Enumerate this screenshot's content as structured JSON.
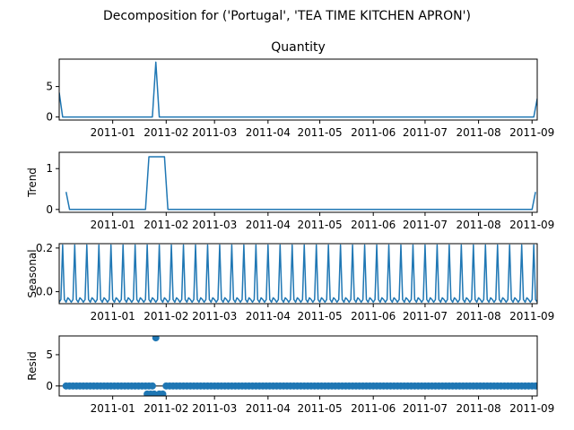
{
  "figure": {
    "suptitle": "Decomposition for ('Portugal', 'TEA TIME KITCHEN APRON')"
  },
  "colors": {
    "series": "#1f77b4",
    "zero_line": "#000000"
  },
  "chart_data": [
    {
      "type": "line",
      "title": "Quantity",
      "ylabel": "",
      "xlim": [
        "2010-12-01",
        "2011-09-04"
      ],
      "ylim": [
        -0.5,
        9.5
      ],
      "yticks": [
        0,
        5
      ],
      "xticks": [
        "2011-01",
        "2011-02",
        "2011-03",
        "2011-04",
        "2011-05",
        "2011-06",
        "2011-07",
        "2011-08",
        "2011-09"
      ],
      "points": [
        [
          "2010-12-01",
          4
        ],
        [
          "2010-12-03",
          0
        ],
        [
          "2011-01-24",
          0
        ],
        [
          "2011-01-26",
          9
        ],
        [
          "2011-01-28",
          0
        ],
        [
          "2011-09-02",
          0
        ],
        [
          "2011-09-04",
          3
        ]
      ]
    },
    {
      "type": "line",
      "title": "",
      "ylabel": "Trend",
      "xlim": [
        "2010-12-01",
        "2011-09-04"
      ],
      "ylim": [
        -0.07,
        1.4
      ],
      "yticks": [
        0,
        1
      ],
      "xticks": [
        "2011-01",
        "2011-02",
        "2011-03",
        "2011-04",
        "2011-05",
        "2011-06",
        "2011-07",
        "2011-08",
        "2011-09"
      ],
      "points": [
        [
          "2010-12-05",
          0.43
        ],
        [
          "2010-12-07",
          0
        ],
        [
          "2011-01-20",
          0
        ],
        [
          "2011-01-22",
          1.29
        ],
        [
          "2011-01-31",
          1.29
        ],
        [
          "2011-02-02",
          0
        ],
        [
          "2011-09-01",
          0
        ],
        [
          "2011-09-03",
          0.43
        ]
      ]
    },
    {
      "type": "line",
      "title": "",
      "ylabel": "Seasonal",
      "xlim": [
        "2010-12-01",
        "2011-09-04"
      ],
      "ylim": [
        -0.055,
        0.22
      ],
      "yticks": [
        0.0,
        0.2
      ],
      "xticks": [
        "2011-01",
        "2011-02",
        "2011-03",
        "2011-04",
        "2011-05",
        "2011-06",
        "2011-07",
        "2011-08",
        "2011-09"
      ],
      "period_days": 7,
      "first_peak": "2010-12-03",
      "peak": 0.214,
      "baseline": -0.036
    },
    {
      "type": "scatter",
      "title": "",
      "ylabel": "Resid",
      "xlim": [
        "2010-12-01",
        "2011-09-04"
      ],
      "ylim": [
        -1.6,
        8.0
      ],
      "yticks": [
        0,
        5
      ],
      "xticks": [
        "2011-01",
        "2011-02",
        "2011-03",
        "2011-04",
        "2011-05",
        "2011-06",
        "2011-07",
        "2011-08",
        "2011-09"
      ],
      "hline": 0,
      "range": [
        "2010-12-05",
        "2011-09-03"
      ],
      "step_days": 2,
      "special_points": [
        [
          "2011-01-21",
          -1.3
        ],
        [
          "2011-01-23",
          -1.3
        ],
        [
          "2011-01-25",
          -1.3
        ],
        [
          "2011-01-26",
          7.7
        ],
        [
          "2011-01-28",
          -1.3
        ],
        [
          "2011-01-30",
          -1.3
        ]
      ]
    }
  ]
}
